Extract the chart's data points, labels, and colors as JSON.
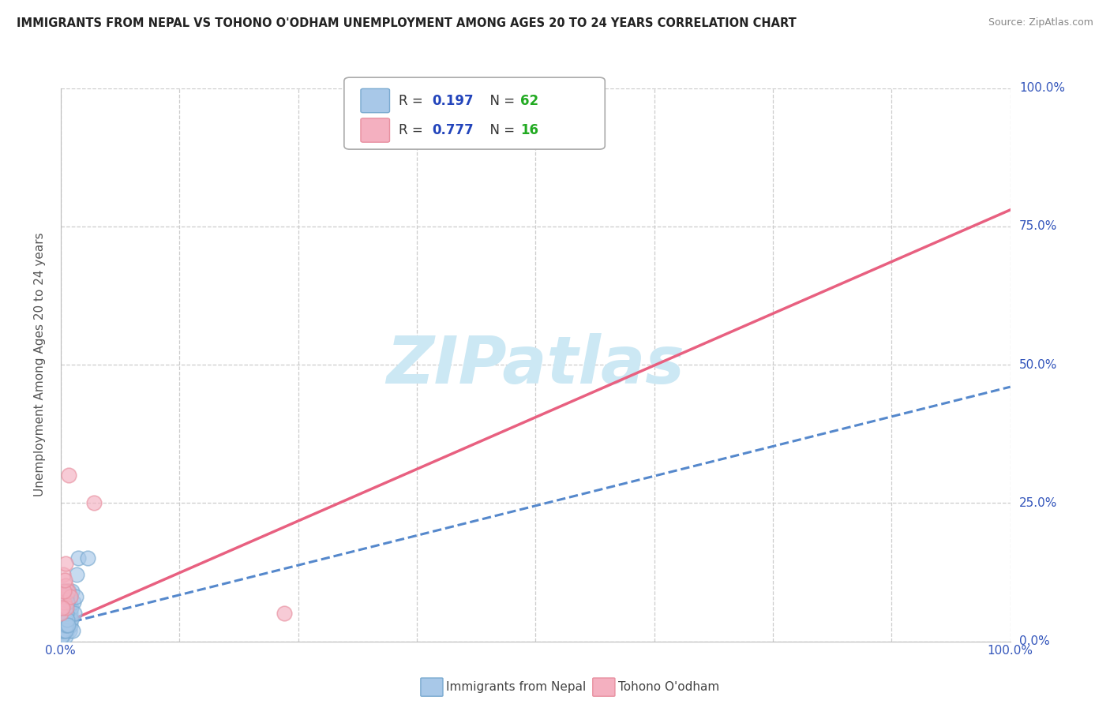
{
  "title": "IMMIGRANTS FROM NEPAL VS TOHONO O'ODHAM UNEMPLOYMENT AMONG AGES 20 TO 24 YEARS CORRELATION CHART",
  "source": "Source: ZipAtlas.com",
  "ylabel": "Unemployment Among Ages 20 to 24 years",
  "ytick_labels": [
    "0.0%",
    "25.0%",
    "50.0%",
    "75.0%",
    "100.0%"
  ],
  "ytick_values": [
    0,
    25,
    50,
    75,
    100
  ],
  "legend_blue_label": "Immigrants from Nepal",
  "legend_pink_label": "Tohono O'odham",
  "blue_color": "#a8c8e8",
  "pink_color": "#f4b0c0",
  "blue_edge_color": "#7aaad0",
  "pink_edge_color": "#e890a0",
  "blue_line_color": "#5588cc",
  "pink_line_color": "#e86080",
  "r_value_color": "#2244bb",
  "n_value_color": "#22aa22",
  "watermark_color": "#cce8f4",
  "blue_scatter_x": [
    0.05,
    0.08,
    0.12,
    0.15,
    0.18,
    0.22,
    0.25,
    0.28,
    0.32,
    0.35,
    0.38,
    0.42,
    0.45,
    0.48,
    0.52,
    0.55,
    0.58,
    0.62,
    0.65,
    0.68,
    0.72,
    0.75,
    0.78,
    0.82,
    0.85,
    0.88,
    0.92,
    0.95,
    0.98,
    1.02,
    1.05,
    1.08,
    1.12,
    1.18,
    1.25,
    1.32,
    1.45,
    1.55,
    1.68,
    1.82,
    0.06,
    0.09,
    0.13,
    0.16,
    0.19,
    0.23,
    0.26,
    0.29,
    0.33,
    0.36,
    0.39,
    0.43,
    0.46,
    0.49,
    0.53,
    0.56,
    0.59,
    0.63,
    0.66,
    0.7,
    0.74,
    2.8
  ],
  "blue_scatter_y": [
    2,
    5,
    3,
    8,
    1,
    6,
    4,
    9,
    2,
    7,
    3,
    5,
    8,
    1,
    6,
    4,
    7,
    3,
    9,
    2,
    5,
    8,
    3,
    6,
    4,
    9,
    2,
    7,
    5,
    8,
    3,
    6,
    4,
    9,
    2,
    7,
    5,
    8,
    12,
    15,
    1,
    4,
    2,
    7,
    3,
    6,
    4,
    8,
    2,
    5,
    3,
    7,
    4,
    6,
    2,
    8,
    3,
    5,
    4,
    7,
    3,
    15
  ],
  "pink_scatter_x": [
    0.05,
    0.15,
    0.25,
    0.35,
    0.48,
    0.62,
    0.72,
    0.88,
    1.05,
    3.5,
    0.18,
    0.32,
    0.42,
    0.55,
    23.5,
    55.0
  ],
  "pink_scatter_y": [
    5,
    8,
    12,
    7,
    10,
    6,
    9,
    30,
    8,
    25,
    6,
    9,
    11,
    14,
    5,
    100
  ],
  "blue_line_x": [
    0,
    100
  ],
  "blue_line_y": [
    3,
    46
  ],
  "pink_line_x": [
    0,
    100
  ],
  "pink_line_y": [
    3,
    78
  ],
  "xlim": [
    0,
    100
  ],
  "ylim": [
    0,
    100
  ],
  "dot_size": 180
}
